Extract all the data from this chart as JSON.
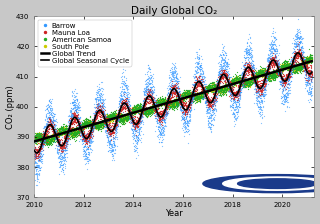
{
  "title": "Daily Global CO₂",
  "xlabel": "Year",
  "ylabel": "CO₂ (ppm)",
  "xlim": [
    2010,
    2021.3
  ],
  "ylim": [
    370,
    430
  ],
  "yticks": [
    370,
    380,
    390,
    400,
    410,
    420,
    430
  ],
  "xticks": [
    2010,
    2012,
    2014,
    2016,
    2018,
    2020
  ],
  "fig_bg_color": "#c8c8c8",
  "plot_bg_color": "#ffffff",
  "barrow_color": "#3399ff",
  "mauna_loa_color": "#cc2222",
  "american_samoa_color": "#22aa22",
  "south_pole_color": "#cccc00",
  "trend_color": "#000000",
  "seasonal_color": "#000000",
  "base_co2_2010": 388.5,
  "trend_slope": 2.38,
  "seasonal_amp_barrow": 9.0,
  "seasonal_amp_mauna": 4.0,
  "seasonal_amp_samoa": 1.2,
  "seasonal_amp_pole": 0.9,
  "noise_barrow": 2.5,
  "noise_mauna": 1.2,
  "noise_samoa": 0.8,
  "noise_pole": 0.6,
  "scatter_size": 0.8,
  "legend_fontsize": 5.0,
  "title_fontsize": 7.5,
  "axis_fontsize": 6,
  "tick_fontsize": 5
}
